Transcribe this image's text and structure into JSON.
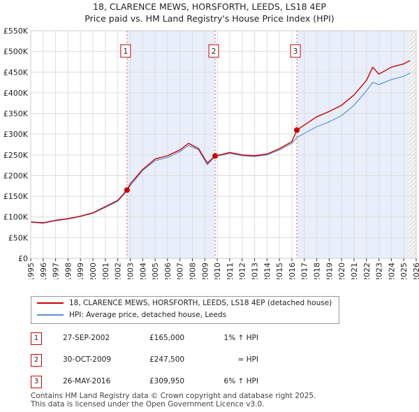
{
  "title_line1": "18, CLARENCE MEWS, HORSFORTH, LEEDS, LS18 4EP",
  "title_line2": "Price paid vs. HM Land Registry's House Price Index (HPI)",
  "chart_data": {
    "type": "line",
    "xlim": [
      1995,
      2026
    ],
    "ylim": [
      0,
      550000
    ],
    "x_ticks": [
      1995,
      1996,
      1997,
      1998,
      1999,
      2000,
      2001,
      2002,
      2003,
      2004,
      2005,
      2006,
      2007,
      2008,
      2009,
      2010,
      2011,
      2012,
      2013,
      2014,
      2015,
      2016,
      2017,
      2018,
      2019,
      2020,
      2021,
      2022,
      2023,
      2024,
      2025,
      2026
    ],
    "y_ticks": [
      0,
      50000,
      100000,
      150000,
      200000,
      250000,
      300000,
      350000,
      400000,
      450000,
      500000,
      550000
    ],
    "y_tick_labels": [
      "£0",
      "£50K",
      "£100K",
      "£150K",
      "£200K",
      "£250K",
      "£300K",
      "£350K",
      "£400K",
      "£450K",
      "£500K",
      "£550K"
    ],
    "series": [
      {
        "name": "18, CLARENCE MEWS, HORSFORTH, LEEDS, LS18 4EP (detached house)",
        "color": "#cc0000",
        "x": [
          1995.0,
          1996.0,
          1997.0,
          1998.0,
          1999.0,
          2000.0,
          2001.0,
          2002.0,
          2002.74,
          2003.0,
          2004.0,
          2005.0,
          2006.0,
          2007.0,
          2007.7,
          2008.5,
          2009.2,
          2009.83,
          2010.5,
          2011.0,
          2012.0,
          2013.0,
          2014.0,
          2015.0,
          2016.0,
          2016.4,
          2017.0,
          2018.0,
          2019.0,
          2020.0,
          2021.0,
          2022.0,
          2022.5,
          2023.0,
          2024.0,
          2025.0,
          2025.5
        ],
        "values": [
          88000,
          86000,
          92000,
          96000,
          102000,
          110000,
          125000,
          140000,
          165000,
          180000,
          215000,
          240000,
          248000,
          262000,
          278000,
          265000,
          230000,
          247500,
          252000,
          256000,
          250000,
          248000,
          252000,
          265000,
          282000,
          309950,
          322000,
          342000,
          355000,
          370000,
          395000,
          430000,
          462000,
          445000,
          462000,
          470000,
          478000
        ]
      },
      {
        "name": "HPI: Average price, detached house, Leeds",
        "color": "#5b8fd4",
        "x": [
          1995.0,
          1996.0,
          1997.0,
          1998.0,
          1999.0,
          2000.0,
          2001.0,
          2002.0,
          2002.74,
          2003.0,
          2004.0,
          2005.0,
          2006.0,
          2007.0,
          2007.7,
          2008.5,
          2009.2,
          2009.83,
          2010.5,
          2011.0,
          2012.0,
          2013.0,
          2014.0,
          2015.0,
          2016.0,
          2016.4,
          2017.0,
          2018.0,
          2019.0,
          2020.0,
          2021.0,
          2022.0,
          2022.5,
          2023.0,
          2024.0,
          2025.0,
          2025.5
        ],
        "values": [
          87000,
          85000,
          91000,
          95000,
          101000,
          109000,
          123000,
          138000,
          163000,
          176000,
          212000,
          236000,
          244000,
          258000,
          273000,
          262000,
          226000,
          247000,
          250000,
          254000,
          248000,
          246000,
          250000,
          262000,
          278000,
          292000,
          302000,
          318000,
          330000,
          345000,
          370000,
          405000,
          425000,
          420000,
          432000,
          440000,
          448000
        ]
      }
    ],
    "sales": [
      {
        "label": "1",
        "x": 2002.74,
        "value": 165000
      },
      {
        "label": "2",
        "x": 2009.83,
        "value": 247500
      },
      {
        "label": "3",
        "x": 2016.4,
        "value": 309950
      }
    ],
    "future_shade_start": 2025.4
  },
  "legend": {
    "property": "18, CLARENCE MEWS, HORSFORTH, LEEDS, LS18 4EP (detached house)",
    "hpi": "HPI: Average price, detached house, Leeds"
  },
  "transactions": [
    {
      "num": "1",
      "date": "27-SEP-2002",
      "price": "£165,000",
      "hpi": "1% ↑ HPI"
    },
    {
      "num": "2",
      "date": "30-OCT-2009",
      "price": "£247,500",
      "hpi": "≈ HPI"
    },
    {
      "num": "3",
      "date": "26-MAY-2016",
      "price": "£309,950",
      "hpi": "6% ↑ HPI"
    }
  ],
  "footer_line1": "Contains HM Land Registry data © Crown copyright and database right 2025.",
  "footer_line2": "This data is licensed under the Open Government Licence v3.0."
}
